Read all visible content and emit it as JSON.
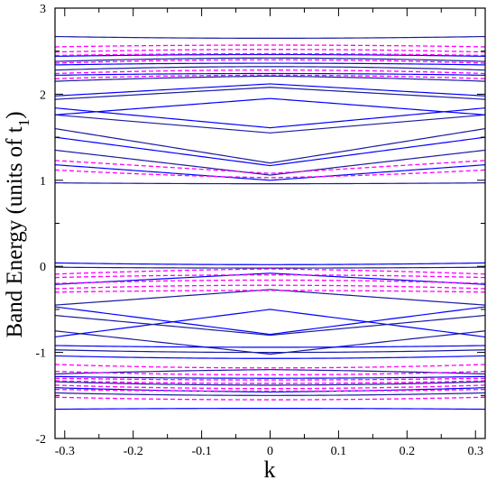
{
  "chart_data": {
    "type": "line",
    "title": "",
    "xlabel": "k",
    "ylabel_main": "Band Energy (units of t",
    "ylabel_sub": "1",
    "ylabel_close": ")",
    "xlim": [
      -0.3142,
      0.3142
    ],
    "ylim": [
      -2,
      3
    ],
    "x_ticks": [
      -0.3,
      -0.2,
      -0.1,
      0,
      0.1,
      0.2,
      0.3
    ],
    "x_tick_labels": [
      "-0.3",
      "-0.2",
      "-0.1",
      "0",
      "0.1",
      "0.2",
      "0.3"
    ],
    "y_ticks": [
      -2,
      -1,
      0,
      1,
      2,
      3
    ],
    "y_tick_labels": [
      "-2",
      "-1",
      "0",
      "1",
      "2",
      "3"
    ],
    "grid": false,
    "series": [
      {
        "style": "solid",
        "colors": [
          "#1a1aa0",
          "#0000ff"
        ],
        "bands": [
          [
            2.65,
            2.67
          ],
          [
            2.46,
            2.44
          ],
          [
            2.42,
            2.38
          ],
          [
            2.36,
            2.34
          ],
          [
            2.32,
            2.28
          ],
          [
            2.24,
            2.22
          ],
          [
            2.21,
            2.15
          ],
          [
            2.12,
            1.98
          ],
          [
            2.08,
            1.94
          ],
          [
            1.95,
            1.76
          ],
          [
            1.55,
            1.76
          ],
          [
            1.61,
            1.84
          ],
          [
            1.2,
            1.6
          ],
          [
            1.17,
            1.5
          ],
          [
            1.06,
            1.35
          ],
          [
            1.0,
            1.18
          ],
          [
            0.96,
            0.97
          ],
          [
            0.02,
            0.04
          ],
          [
            -0.02,
            -0.01
          ],
          [
            -0.08,
            -0.21
          ],
          [
            -0.27,
            -0.45
          ],
          [
            -0.5,
            -0.82
          ],
          [
            -0.8,
            -0.57
          ],
          [
            -0.79,
            -0.47
          ],
          [
            -1.02,
            -0.75
          ],
          [
            -0.94,
            -0.92
          ],
          [
            -1.0,
            -0.97
          ],
          [
            -1.07,
            -1.04
          ],
          [
            -1.2,
            -1.25
          ],
          [
            -1.3,
            -1.28
          ],
          [
            -1.38,
            -1.34
          ],
          [
            -1.46,
            -1.41
          ],
          [
            -1.5,
            -1.47
          ],
          [
            -1.65,
            -1.66
          ]
        ]
      },
      {
        "style": "dashed",
        "color": "#ff00ff",
        "bands": [
          [
            2.57,
            2.55
          ],
          [
            2.52,
            2.49
          ],
          [
            2.47,
            2.45
          ],
          [
            2.4,
            2.36
          ],
          [
            2.28,
            2.24
          ],
          [
            2.22,
            2.18
          ],
          [
            1.08,
            1.23
          ],
          [
            1.03,
            1.12
          ],
          [
            -0.03,
            -0.09
          ],
          [
            -0.1,
            -0.13
          ],
          [
            -0.16,
            -0.2
          ],
          [
            -0.22,
            -0.26
          ],
          [
            -0.28,
            -0.3
          ],
          [
            -1.18,
            -1.14
          ],
          [
            -1.26,
            -1.22
          ],
          [
            -1.32,
            -1.3
          ],
          [
            -1.36,
            -1.33
          ],
          [
            -1.42,
            -1.38
          ],
          [
            -1.45,
            -1.43
          ],
          [
            -1.55,
            -1.52
          ]
        ]
      }
    ]
  }
}
